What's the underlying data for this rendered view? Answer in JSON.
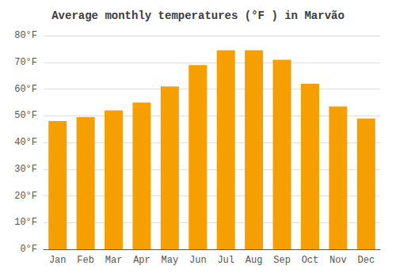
{
  "chart_data": {
    "type": "bar",
    "title": "Average monthly temperatures (°F ) in Marvão",
    "categories": [
      "Jan",
      "Feb",
      "Mar",
      "Apr",
      "May",
      "Jun",
      "Jul",
      "Aug",
      "Sep",
      "Oct",
      "Nov",
      "Dec"
    ],
    "values": [
      48,
      49.5,
      52,
      55,
      61,
      69,
      74.5,
      74.5,
      71,
      62,
      53.5,
      49
    ],
    "color": "#F5A000",
    "ylim": [
      0,
      80
    ],
    "yticks": [
      {
        "value": 0,
        "label": "0°F"
      },
      {
        "value": 10,
        "label": "10°F"
      },
      {
        "value": 20,
        "label": "20°F"
      },
      {
        "value": 30,
        "label": "30°F"
      },
      {
        "value": 40,
        "label": "40°F"
      },
      {
        "value": 50,
        "label": "50°F"
      },
      {
        "value": 60,
        "label": "60°F"
      },
      {
        "value": 70,
        "label": "70°F"
      },
      {
        "value": 80,
        "label": "80°F"
      }
    ],
    "grid": true
  }
}
